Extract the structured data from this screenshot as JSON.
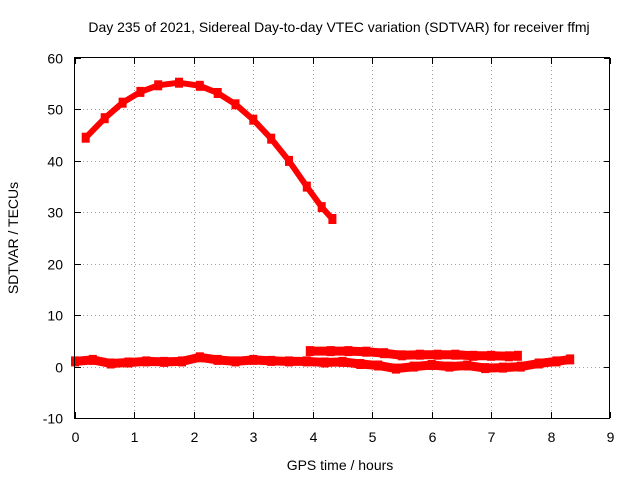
{
  "chart_data": {
    "type": "line",
    "title": "Day 235 of 2021, Sidereal Day-to-day VTEC variation (SDTVAR) for receiver ffmj",
    "xlabel": "GPS time / hours",
    "ylabel": "SDTVAR / TECUs",
    "xlim": [
      0,
      9
    ],
    "ylim": [
      -10,
      60
    ],
    "xticks": [
      0,
      1,
      2,
      3,
      4,
      5,
      6,
      7,
      8,
      9
    ],
    "yticks": [
      -10,
      0,
      10,
      20,
      30,
      40,
      50,
      60
    ],
    "grid": true,
    "series_color": "#ff0000",
    "series": [
      {
        "name": "high-arc",
        "x": [
          0.18,
          0.5,
          0.8,
          1.1,
          1.4,
          1.75,
          2.1,
          2.4,
          2.7,
          3.0,
          3.3,
          3.6,
          3.9,
          4.15,
          4.33
        ],
        "y": [
          44.5,
          48.3,
          51.3,
          53.4,
          54.7,
          55.2,
          54.6,
          53.2,
          51.0,
          48.0,
          44.3,
          40.0,
          35.0,
          31.0,
          28.7
        ]
      },
      {
        "name": "low-band-a",
        "x": [
          0.0,
          0.3,
          0.6,
          0.9,
          1.2,
          1.5,
          1.8,
          2.1,
          2.4,
          2.7,
          3.0,
          3.3,
          3.6,
          3.9,
          4.2,
          4.5,
          4.8,
          5.1,
          5.4,
          5.7,
          6.0,
          6.3,
          6.6,
          6.9,
          7.2,
          7.5,
          7.8,
          8.1,
          8.33
        ],
        "y": [
          1.0,
          1.3,
          0.6,
          0.8,
          1.0,
          0.9,
          1.0,
          1.8,
          1.3,
          1.0,
          1.3,
          1.1,
          1.0,
          1.0,
          0.8,
          0.9,
          0.5,
          0.2,
          -0.4,
          0.0,
          0.3,
          0.0,
          0.2,
          -0.3,
          -0.2,
          0.0,
          0.6,
          1.0,
          1.4
        ]
      },
      {
        "name": "low-band-b",
        "x": [
          3.95,
          4.3,
          4.6,
          4.9,
          5.2,
          5.5,
          5.8,
          6.1,
          6.4,
          6.7,
          7.0,
          7.3,
          7.45
        ],
        "y": [
          3.0,
          3.0,
          3.0,
          2.9,
          2.6,
          2.2,
          2.3,
          2.3,
          2.3,
          2.1,
          2.1,
          2.0,
          2.1
        ]
      }
    ]
  }
}
